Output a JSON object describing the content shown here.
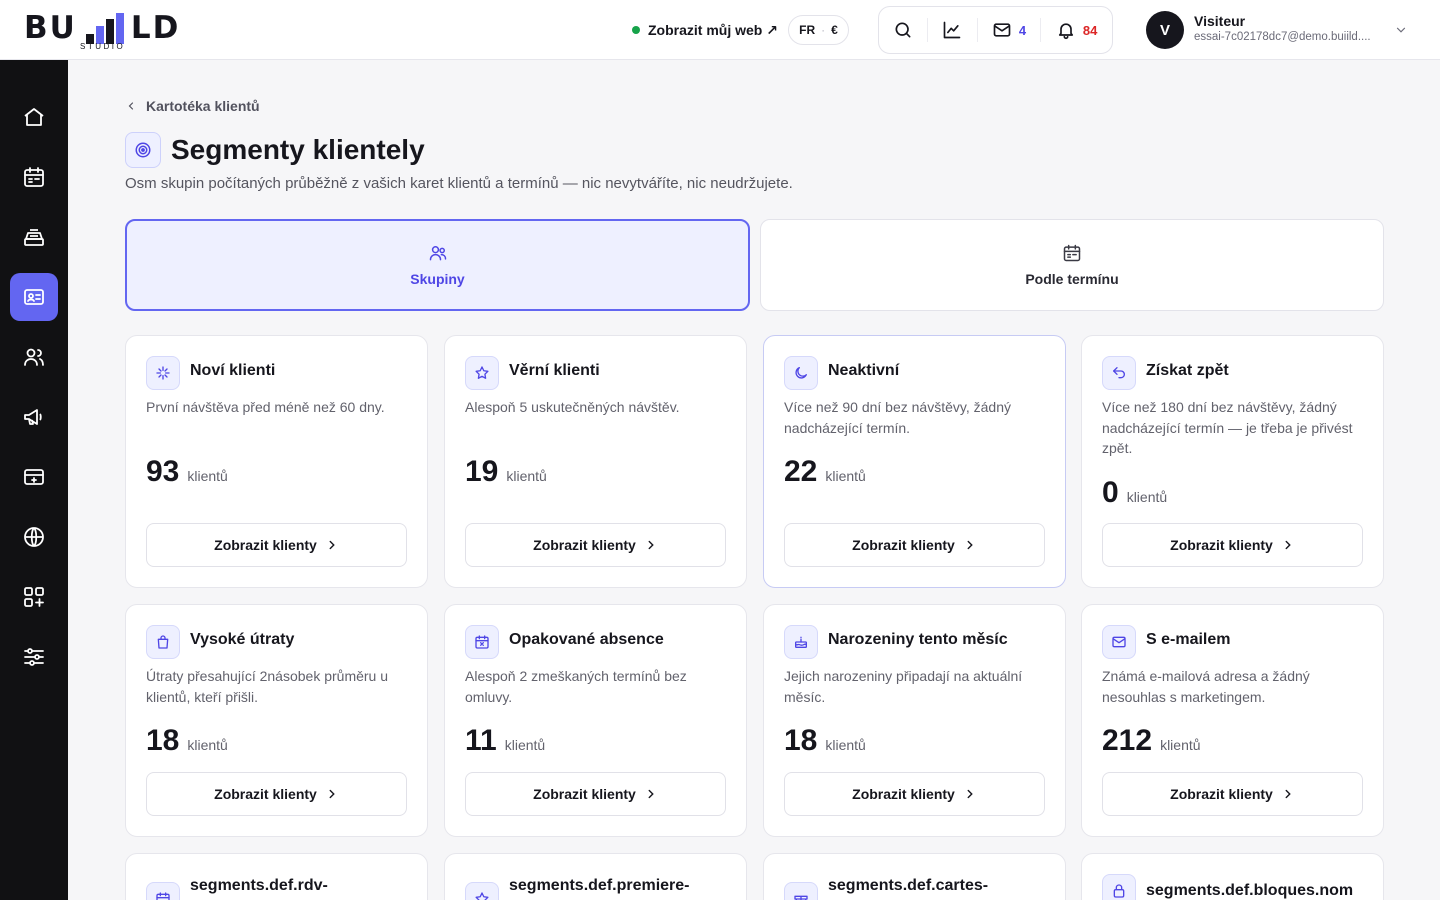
{
  "brand": {
    "logo_left": "BU",
    "logo_right": "LD",
    "logo_sub": "STUDIO"
  },
  "header": {
    "site_link": "Zobrazit můj web ↗",
    "locale": {
      "lang": "FR",
      "sep": "·",
      "currency": "€"
    },
    "mail_count": "4",
    "notif_count": "84",
    "user": {
      "initial": "V",
      "name": "Visiteur",
      "email": "essai-7c02178dc7@demo.buiild...."
    }
  },
  "sidebar": {
    "items": [
      {
        "icon": "home-icon"
      },
      {
        "icon": "calendar-icon"
      },
      {
        "icon": "cash-register-icon"
      },
      {
        "icon": "contact-card-icon",
        "active": true
      },
      {
        "icon": "users-icon"
      },
      {
        "icon": "megaphone-icon"
      },
      {
        "icon": "payment-card-icon"
      },
      {
        "icon": "globe-icon"
      },
      {
        "icon": "apps-icon"
      },
      {
        "icon": "sliders-icon"
      }
    ]
  },
  "page": {
    "breadcrumb": "Kartotéka klientů",
    "title": "Segmenty klientely",
    "subtitle": "Osm skupin počítaných průběžně z vašich karet klientů a termínů — nic nevytváříte, nic neudržujete.",
    "tabs": [
      {
        "label": "Skupiny",
        "icon": "users-icon",
        "active": true
      },
      {
        "label": "Podle termínu",
        "icon": "calendar-icon",
        "active": false
      }
    ]
  },
  "cards": [
    {
      "icon": "sparkle-icon",
      "title": "Noví klienti",
      "desc": "První návštěva před méně než 60 dny.",
      "count": "93",
      "unit": "klientů",
      "button": "Zobrazit klienty"
    },
    {
      "icon": "star-icon",
      "title": "Věrní klienti",
      "desc": "Alespoň 5 uskutečněných návštěv.",
      "count": "19",
      "unit": "klientů",
      "button": "Zobrazit klienty"
    },
    {
      "icon": "moon-icon",
      "title": "Neaktivní",
      "desc": "Více než 90 dní bez návštěvy, žádný nadcházející termín.",
      "count": "22",
      "unit": "klientů",
      "button": "Zobrazit klienty"
    },
    {
      "icon": "undo-icon",
      "title": "Získat zpět",
      "desc": "Více než 180 dní bez návštěvy, žádný nadcházející termín — je třeba je přivést zpět.",
      "count": "0",
      "unit": "klientů",
      "button": "Zobrazit klienty"
    },
    {
      "icon": "shopping-bag-icon",
      "title": "Vysoké útraty",
      "desc": "Útraty přesahující 2násobek průměru u klientů, kteří přišli.",
      "count": "18",
      "unit": "klientů",
      "button": "Zobrazit klienty"
    },
    {
      "icon": "calendar-x-icon",
      "title": "Opakované absence",
      "desc": "Alespoň 2 zmeškaných termínů bez omluvy.",
      "count": "11",
      "unit": "klientů",
      "button": "Zobrazit klienty"
    },
    {
      "icon": "cake-icon",
      "title": "Narozeniny tento měsíc",
      "desc": "Jejich narozeniny připadají na aktuální měsíc.",
      "count": "18",
      "unit": "klientů",
      "button": "Zobrazit klienty"
    },
    {
      "icon": "mail-icon",
      "title": "S e-mailem",
      "desc": "Známá e-mailová adresa a žádný nesouhlas s marketingem.",
      "count": "212",
      "unit": "klientů",
      "button": "Zobrazit klienty"
    },
    {
      "icon": "calendar-icon",
      "title": "segments.def.rdv-"
    },
    {
      "icon": "star-icon",
      "title": "segments.def.premiere-"
    },
    {
      "icon": "gift-icon",
      "title": "segments.def.cartes-"
    },
    {
      "icon": "lock-icon",
      "title": "segments.def.bloques.nom"
    }
  ]
}
